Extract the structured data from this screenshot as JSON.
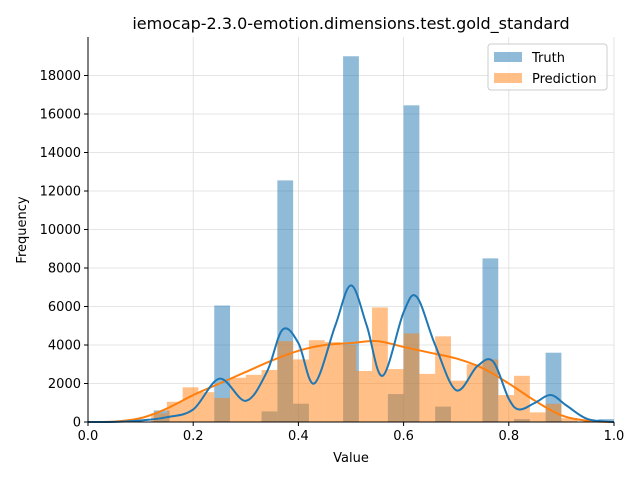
{
  "chart_data": {
    "type": "bar",
    "title": "iemocap-2.3.0-emotion.dimensions.test.gold_standard",
    "xlabel": "Value",
    "ylabel": "Frequency",
    "xlim": [
      0,
      1
    ],
    "ylim": [
      0,
      20000
    ],
    "xticks": [
      "0.0",
      "0.2",
      "0.4",
      "0.6",
      "0.8",
      "1.0"
    ],
    "yticks": [
      "0",
      "2000",
      "4000",
      "6000",
      "8000",
      "10000",
      "12000",
      "14000",
      "16000",
      "18000"
    ],
    "grid": true,
    "legend_position": "top-right",
    "series": [
      {
        "name": "Truth",
        "color": "#1f77b4",
        "bins": [
          {
            "x0": 0.125,
            "x1": 0.155,
            "y": 600
          },
          {
            "x0": 0.24,
            "x1": 0.27,
            "y": 6050
          },
          {
            "x0": 0.33,
            "x1": 0.36,
            "y": 550
          },
          {
            "x0": 0.36,
            "x1": 0.39,
            "y": 12550
          },
          {
            "x0": 0.39,
            "x1": 0.42,
            "y": 950
          },
          {
            "x0": 0.485,
            "x1": 0.515,
            "y": 19000
          },
          {
            "x0": 0.57,
            "x1": 0.6,
            "y": 1450
          },
          {
            "x0": 0.6,
            "x1": 0.63,
            "y": 16450
          },
          {
            "x0": 0.66,
            "x1": 0.69,
            "y": 800
          },
          {
            "x0": 0.75,
            "x1": 0.78,
            "y": 8500
          },
          {
            "x0": 0.81,
            "x1": 0.84,
            "y": 150
          },
          {
            "x0": 0.87,
            "x1": 0.9,
            "y": 3600
          },
          {
            "x0": 0.97,
            "x1": 1.0,
            "y": 150
          }
        ],
        "kde": [
          [
            0.0,
            0
          ],
          [
            0.05,
            5
          ],
          [
            0.1,
            80
          ],
          [
            0.15,
            250
          ],
          [
            0.2,
            650
          ],
          [
            0.25,
            2250
          ],
          [
            0.3,
            1100
          ],
          [
            0.34,
            2600
          ],
          [
            0.37,
            4800
          ],
          [
            0.4,
            4100
          ],
          [
            0.43,
            2000
          ],
          [
            0.47,
            5000
          ],
          [
            0.5,
            7100
          ],
          [
            0.53,
            5000
          ],
          [
            0.56,
            2400
          ],
          [
            0.6,
            5700
          ],
          [
            0.625,
            6500
          ],
          [
            0.66,
            4000
          ],
          [
            0.7,
            1650
          ],
          [
            0.74,
            2900
          ],
          [
            0.77,
            3150
          ],
          [
            0.8,
            1200
          ],
          [
            0.82,
            650
          ],
          [
            0.85,
            1000
          ],
          [
            0.88,
            1400
          ],
          [
            0.91,
            850
          ],
          [
            0.95,
            150
          ],
          [
            1.0,
            0
          ]
        ]
      },
      {
        "name": "Prediction",
        "color": "#ff7f0e",
        "bins": [
          {
            "x0": 0.12,
            "x1": 0.15,
            "y": 450
          },
          {
            "x0": 0.15,
            "x1": 0.18,
            "y": 1050
          },
          {
            "x0": 0.18,
            "x1": 0.21,
            "y": 1800
          },
          {
            "x0": 0.21,
            "x1": 0.24,
            "y": 1550
          },
          {
            "x0": 0.24,
            "x1": 0.27,
            "y": 1250
          },
          {
            "x0": 0.27,
            "x1": 0.3,
            "y": 2300
          },
          {
            "x0": 0.3,
            "x1": 0.33,
            "y": 2450
          },
          {
            "x0": 0.33,
            "x1": 0.36,
            "y": 2700
          },
          {
            "x0": 0.36,
            "x1": 0.39,
            "y": 4200
          },
          {
            "x0": 0.39,
            "x1": 0.42,
            "y": 3250
          },
          {
            "x0": 0.42,
            "x1": 0.45,
            "y": 4250
          },
          {
            "x0": 0.45,
            "x1": 0.48,
            "y": 4150
          },
          {
            "x0": 0.48,
            "x1": 0.51,
            "y": 4000
          },
          {
            "x0": 0.51,
            "x1": 0.54,
            "y": 2650
          },
          {
            "x0": 0.54,
            "x1": 0.57,
            "y": 5950
          },
          {
            "x0": 0.57,
            "x1": 0.6,
            "y": 2750
          },
          {
            "x0": 0.6,
            "x1": 0.63,
            "y": 4600
          },
          {
            "x0": 0.63,
            "x1": 0.66,
            "y": 2500
          },
          {
            "x0": 0.66,
            "x1": 0.69,
            "y": 4450
          },
          {
            "x0": 0.69,
            "x1": 0.72,
            "y": 2150
          },
          {
            "x0": 0.72,
            "x1": 0.75,
            "y": 3000
          },
          {
            "x0": 0.75,
            "x1": 0.78,
            "y": 3250
          },
          {
            "x0": 0.78,
            "x1": 0.81,
            "y": 1400
          },
          {
            "x0": 0.81,
            "x1": 0.84,
            "y": 2400
          },
          {
            "x0": 0.84,
            "x1": 0.87,
            "y": 500
          },
          {
            "x0": 0.87,
            "x1": 0.9,
            "y": 950
          },
          {
            "x0": 0.9,
            "x1": 0.93,
            "y": 200
          }
        ],
        "kde": [
          [
            0.0,
            0
          ],
          [
            0.05,
            20
          ],
          [
            0.1,
            200
          ],
          [
            0.15,
            700
          ],
          [
            0.2,
            1400
          ],
          [
            0.25,
            2000
          ],
          [
            0.3,
            2600
          ],
          [
            0.35,
            3200
          ],
          [
            0.4,
            3700
          ],
          [
            0.45,
            4000
          ],
          [
            0.5,
            4100
          ],
          [
            0.55,
            4200
          ],
          [
            0.6,
            3900
          ],
          [
            0.65,
            3600
          ],
          [
            0.7,
            3300
          ],
          [
            0.75,
            2800
          ],
          [
            0.8,
            2000
          ],
          [
            0.85,
            1100
          ],
          [
            0.9,
            350
          ],
          [
            0.95,
            60
          ],
          [
            1.0,
            0
          ]
        ]
      }
    ]
  }
}
